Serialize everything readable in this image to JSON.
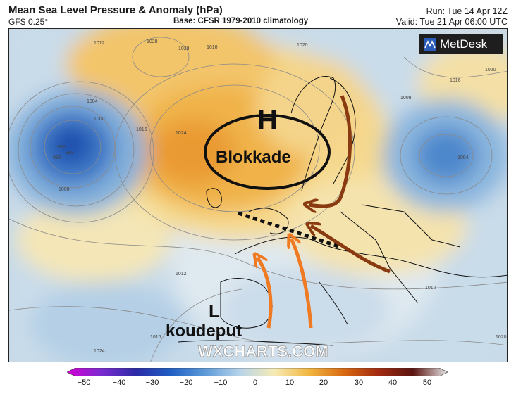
{
  "header": {
    "title": "Mean Sea Level Pressure & Anomaly (hPa)",
    "model": "GFS 0.25°",
    "base": "Base: CFSR 1979-2010 climatology",
    "run": "Run: Tue 14 Apr 12Z",
    "valid": "Valid: Tue 21 Apr 06:00 UTC"
  },
  "logo": {
    "text": "MetDesk"
  },
  "annotations": {
    "high_letter": "H",
    "high_label": "Blokkade",
    "low_letter": "L",
    "low_label": "koudeput",
    "watermark": "WXCHARTS.COM"
  },
  "isobars": [
    "1028",
    "1028",
    "1024",
    "1020",
    "1016",
    "1016",
    "1012",
    "1012",
    "1008",
    "1004",
    "1000",
    "996",
    "992",
    "988",
    "1020",
    "1016",
    "1008",
    "1012",
    "1016",
    "1024",
    "1004",
    "1020"
  ],
  "colorbar": {
    "ticks": [
      "−50",
      "−40",
      "−30",
      "−20",
      "−10",
      "0",
      "10",
      "20",
      "30",
      "40",
      "50"
    ],
    "colors": [
      "#d400d4",
      "#7a2bd0",
      "#2b2ba6",
      "#1f5fc4",
      "#5e9bd8",
      "#b8d4ea",
      "#f6ebb4",
      "#f2b640",
      "#d96a12",
      "#a22a10",
      "#5a1410",
      "#e6e6e6"
    ]
  }
}
